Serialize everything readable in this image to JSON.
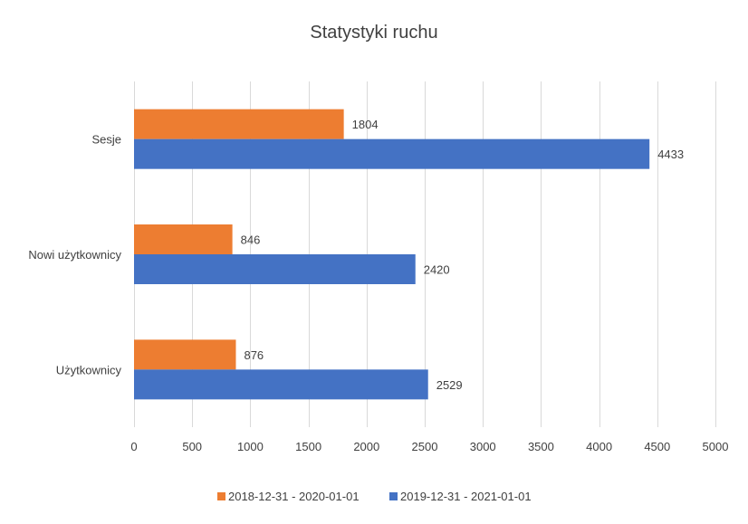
{
  "chart_data": {
    "type": "bar",
    "orientation": "horizontal",
    "title": "Statystyki ruchu",
    "categories": [
      "Sesje",
      "Nowi użytkownicy",
      "Użytkownicy"
    ],
    "series": [
      {
        "name": "2018-12-31 - 2020-01-01",
        "color": "#ED7D31",
        "values": [
          1804,
          846,
          876
        ]
      },
      {
        "name": "2019-12-31 - 2021-01-01",
        "color": "#4472C4",
        "values": [
          4433,
          2420,
          2529
        ]
      }
    ],
    "xlim": [
      0,
      5000
    ],
    "x_ticks": [
      0,
      500,
      1000,
      1500,
      2000,
      2500,
      3000,
      3500,
      4000,
      4500,
      5000
    ],
    "grid": true,
    "legend_position": "bottom"
  }
}
